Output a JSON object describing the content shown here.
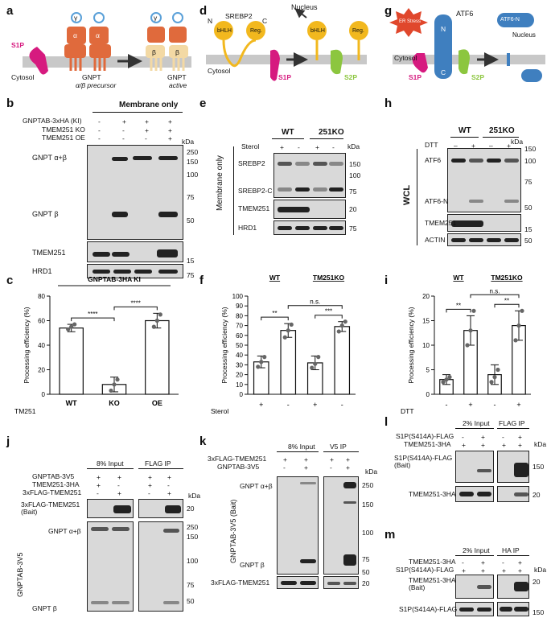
{
  "panels": {
    "a": {
      "letter": "a",
      "s1p": "S1P",
      "cytosol": "Cytosol",
      "precursor_title": "GNPT",
      "precursor_sub": "α/β precursor",
      "active_title": "GNPT",
      "active_sub": "active",
      "alpha": "α",
      "beta": "β",
      "gamma": "γ"
    },
    "d": {
      "letter": "d",
      "srebp2": "SREBP2",
      "n": "N",
      "c": "C",
      "bhlh": "bHLH",
      "reg": "Reg.",
      "nucleus": "Nucleus",
      "cytosol": "Cytosol",
      "s1p": "S1P",
      "s2p": "S2P"
    },
    "g": {
      "letter": "g",
      "er_stress": "ER Stress",
      "atf6": "ATF6",
      "atf6n": "ATF6-N",
      "nucleus": "Nucleus",
      "cytosol": "Cytosol",
      "n": "N",
      "c": "C",
      "s1p": "S1P",
      "s2p": "S2P"
    },
    "b": {
      "letter": "b",
      "header": "Membrane only",
      "row1": "GNPTAB-3xHA (KI)",
      "row2": "TMEM251 KO",
      "row3": "TMEM251 OE",
      "kda": "kDa",
      "band_ab": "GNPT α+β",
      "band_b": "GNPT β",
      "tmem": "TMEM251",
      "hrd1": "HRD1",
      "markers": [
        "250",
        "150",
        "100",
        "75",
        "50",
        "15",
        "75"
      ],
      "signs": [
        [
          "-",
          "+",
          "+",
          "+"
        ],
        [
          "-",
          "-",
          "+",
          "+"
        ],
        [
          "-",
          "-",
          "-",
          "+"
        ]
      ]
    },
    "e": {
      "letter": "e",
      "wt": "WT",
      "ko": "251KO",
      "sterol": "Sterol",
      "side": "Membrane only",
      "srebp2": "SREBP2",
      "srebp2c": "SREBP2-C",
      "tmem": "TMEM251",
      "hrd1": "HRD1",
      "kda": "kDa",
      "markers": [
        "150",
        "100",
        "75",
        "20",
        "75"
      ],
      "signs": [
        "+",
        "-",
        "+",
        "-"
      ]
    },
    "h": {
      "letter": "h",
      "wt": "WT",
      "ko": "251KO",
      "dtt": "DTT",
      "side": "WCL",
      "atf6": "ATF6",
      "atf6n": "ATF6-N",
      "tmem": "TMEM251",
      "actin": "ACTIN",
      "kda": "kDa",
      "markers": [
        "150",
        "100",
        "75",
        "50",
        "15",
        "50"
      ],
      "signs": [
        "–",
        "+",
        "–",
        "+"
      ]
    },
    "j": {
      "letter": "j",
      "input": "8% Input",
      "ip": "FLAG  IP",
      "rows": [
        "GNPTAB-3V5",
        "TMEM251-3HA",
        "3xFLAG-TMEM251"
      ],
      "signs": [
        [
          "+",
          "+",
          "+",
          "+"
        ],
        [
          "+",
          "-",
          "+",
          "-"
        ],
        [
          "-",
          "+",
          "-",
          "+"
        ]
      ],
      "kda": "kDa",
      "bait": "3xFLAG-TMEM251\n(Bait)",
      "gnpt_ab": "GNPT α+β",
      "gnpt_b": "GNPT β",
      "side": "GNPTAB-3V5",
      "markers": [
        "20",
        "250",
        "150",
        "100",
        "75",
        "50"
      ]
    },
    "k": {
      "letter": "k",
      "input": "8% Input",
      "ip": "V5  IP",
      "rows": [
        "3xFLAG-TMEM251",
        "GNPTAB-3V5"
      ],
      "signs": [
        [
          "+",
          "+",
          "+",
          "+"
        ],
        [
          "-",
          "+",
          "-",
          "+"
        ]
      ],
      "kda": "kDa",
      "gnpt_ab": "GNPT α+β",
      "gnpt_b": "GNPT β",
      "side": "GNPTAB-3V5 (Bait)",
      "bottom": "3xFLAG-TMEM251",
      "markers": [
        "250",
        "150",
        "100",
        "75",
        "50",
        "20"
      ]
    },
    "l": {
      "letter": "l",
      "input": "2% Input",
      "ip": "FLAG  IP",
      "rows": [
        "S1P(S414A)-FLAG",
        "TMEM251-3HA"
      ],
      "signs": [
        [
          "-",
          "+",
          "-",
          "+"
        ],
        [
          "+",
          "+",
          "+",
          "+"
        ]
      ],
      "kda": "kDa",
      "bait": "S1P(S414A)-FLAG\n(Bait)",
      "tmem": "TMEM251-3HA",
      "markers": [
        "150",
        "20"
      ]
    },
    "m": {
      "letter": "m",
      "input": "2% Input",
      "ip": "HA  IP",
      "rows": [
        "TMEM251-3HA",
        "S1P(S414A)-FLAG"
      ],
      "signs": [
        [
          "-",
          "+",
          "-",
          "+"
        ],
        [
          "+",
          "+",
          "+",
          "+"
        ]
      ],
      "kda": "kDa",
      "bait": "TMEM251-3HA\n(Bait)",
      "s1p": "S1P(S414A)-FLAG",
      "markers": [
        "20",
        "150"
      ]
    }
  },
  "chart_data": [
    {
      "panel": "c",
      "type": "bar",
      "title": "GNPTAB-3HA KI",
      "ylabel": "Processing efficiency (%)",
      "ylim": [
        0,
        80
      ],
      "yticks": [
        0,
        20,
        40,
        60,
        80
      ],
      "row_label": "TM251",
      "categories": [
        "WT",
        "KO",
        "OE"
      ],
      "values": [
        54,
        8,
        60
      ],
      "errors": [
        3,
        6,
        6
      ],
      "points": [
        [
          53,
          55,
          57
        ],
        [
          3,
          8,
          12
        ],
        [
          55,
          60,
          65
        ]
      ],
      "significance": [
        {
          "pair": [
            0,
            1
          ],
          "label": "****"
        },
        {
          "pair": [
            1,
            2
          ],
          "label": "****"
        }
      ]
    },
    {
      "panel": "f",
      "type": "bar",
      "groups": [
        "WT",
        "TM251KO"
      ],
      "ylabel": "Processing efficiency (%)",
      "ylim": [
        0,
        100
      ],
      "yticks": [
        0,
        10,
        20,
        30,
        40,
        50,
        60,
        70,
        80,
        90,
        100
      ],
      "row_label": "Sterol",
      "categories": [
        "+",
        "-",
        "+",
        "-"
      ],
      "values": [
        33,
        65,
        32,
        69
      ],
      "errors": [
        6,
        7,
        7,
        5
      ],
      "points": [
        [
          28,
          33,
          38
        ],
        [
          58,
          65,
          71
        ],
        [
          27,
          31,
          38
        ],
        [
          64,
          70,
          74
        ]
      ],
      "significance": [
        {
          "pair": [
            0,
            1
          ],
          "label": "**"
        },
        {
          "pair": [
            2,
            3
          ],
          "label": "***"
        },
        {
          "pair": [
            1,
            3
          ],
          "label": "n.s."
        }
      ]
    },
    {
      "panel": "i",
      "type": "bar",
      "groups": [
        "WT",
        "TM251KO"
      ],
      "ylabel": "Processing efficiency (%)",
      "ylim": [
        0,
        20
      ],
      "yticks": [
        0,
        5,
        10,
        15,
        20
      ],
      "row_label": "DTT",
      "categories": [
        "-",
        "+",
        "-",
        "+"
      ],
      "values": [
        3,
        13,
        4,
        14
      ],
      "errors": [
        1,
        3,
        2,
        3
      ],
      "points": [
        [
          2.5,
          3,
          3.5
        ],
        [
          10,
          13,
          17
        ],
        [
          2.5,
          3.5,
          5
        ],
        [
          11,
          14,
          17
        ]
      ],
      "significance": [
        {
          "pair": [
            0,
            1
          ],
          "label": "**"
        },
        {
          "pair": [
            2,
            3
          ],
          "label": "**"
        },
        {
          "pair": [
            1,
            3
          ],
          "label": "n.s."
        }
      ]
    }
  ]
}
